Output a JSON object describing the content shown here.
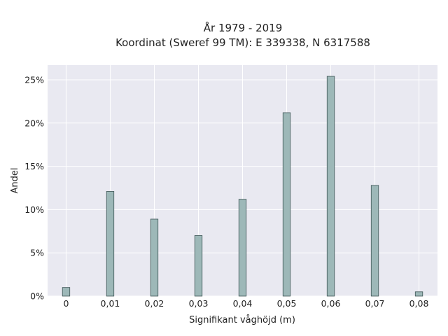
{
  "chart_data": {
    "type": "bar",
    "title_line1": "År 1979 - 2019",
    "title_line2": "Koordinat (Sweref 99 TM): E 339338, N 6317588",
    "xlabel": "Signifikant våghöjd (m)",
    "ylabel": "Andel",
    "categories": [
      "0",
      "0,01",
      "0,02",
      "0,03",
      "0,04",
      "0,05",
      "0,06",
      "0,07",
      "0,08"
    ],
    "x_values": [
      0,
      0.01,
      0.02,
      0.03,
      0.04,
      0.05,
      0.06,
      0.07,
      0.08
    ],
    "values": [
      1.0,
      12.1,
      8.9,
      7.0,
      11.2,
      21.2,
      25.4,
      12.8,
      0.5
    ],
    "y_ticks": [
      "0%",
      "5%",
      "10%",
      "15%",
      "20%",
      "25%"
    ],
    "y_tick_values": [
      0,
      5,
      10,
      15,
      20,
      25
    ],
    "ylim": [
      0,
      26.7
    ],
    "xlim": [
      -0.0042,
      0.0842
    ],
    "grid": true,
    "colors": {
      "bar_fill": "#9db8b8",
      "bar_stroke": "#3f5656",
      "plot_bg": "#e9e9f1",
      "grid": "#ffffff"
    }
  }
}
